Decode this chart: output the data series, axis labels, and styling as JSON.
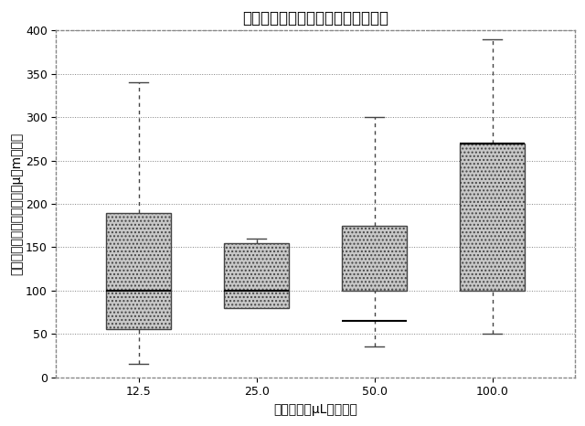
{
  "title": "血小板前駆細胞伸長速度対注入速度",
  "xlabel": "注入速度（μL／時間）",
  "ylabel": "血小板前駆細胞伸長速度（μ・m／分）",
  "categories": [
    "12.5",
    "25.0",
    "50.0",
    "100.0"
  ],
  "boxes": [
    {
      "whisker_low": 15,
      "q1": 55,
      "median": 100,
      "q3": 190,
      "whisker_high": 340
    },
    {
      "whisker_low": 80,
      "q1": 80,
      "median": 100,
      "q3": 155,
      "whisker_high": 160
    },
    {
      "whisker_low": 35,
      "q1": 100,
      "median": 65,
      "q3": 175,
      "whisker_high": 300
    },
    {
      "whisker_low": 50,
      "q1": 100,
      "median": 270,
      "q3": 270,
      "whisker_high": 390
    }
  ],
  "ylim": [
    0,
    400
  ],
  "yticks": [
    0,
    50,
    100,
    150,
    200,
    250,
    300,
    350,
    400
  ],
  "background_color": "#ffffff",
  "box_face_color": "#c8c8c8",
  "box_edge_color": "#444444",
  "median_color": "#000000",
  "whisker_color": "#444444",
  "title_fontsize": 12,
  "label_fontsize": 10,
  "tick_fontsize": 9
}
